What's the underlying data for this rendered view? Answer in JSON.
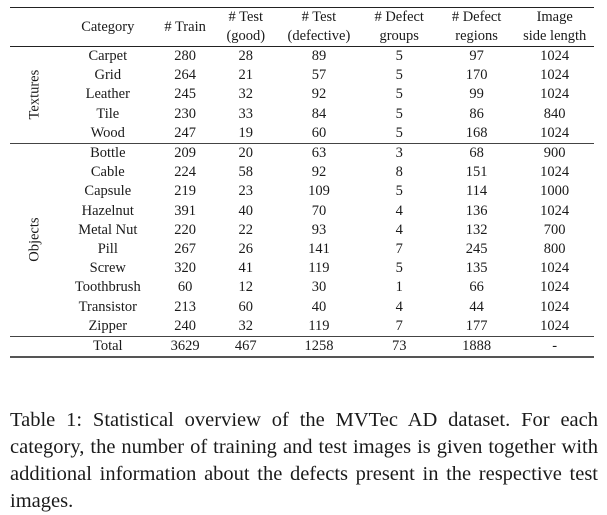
{
  "table": {
    "headers": [
      {
        "line1": "",
        "line2": ""
      },
      {
        "line1": "Category",
        "line2": ""
      },
      {
        "line1": "# Train",
        "line2": ""
      },
      {
        "line1": "# Test",
        "line2": "(good)"
      },
      {
        "line1": "# Test",
        "line2": "(defective)"
      },
      {
        "line1": "# Defect",
        "line2": "groups"
      },
      {
        "line1": "# Defect",
        "line2": "regions"
      },
      {
        "line1": "Image",
        "line2": "side length"
      }
    ],
    "groups": [
      {
        "label": "Textures",
        "rows": [
          [
            "Carpet",
            "280",
            "28",
            "89",
            "5",
            "97",
            "1024"
          ],
          [
            "Grid",
            "264",
            "21",
            "57",
            "5",
            "170",
            "1024"
          ],
          [
            "Leather",
            "245",
            "32",
            "92",
            "5",
            "99",
            "1024"
          ],
          [
            "Tile",
            "230",
            "33",
            "84",
            "5",
            "86",
            "840"
          ],
          [
            "Wood",
            "247",
            "19",
            "60",
            "5",
            "168",
            "1024"
          ]
        ]
      },
      {
        "label": "Objects",
        "rows": [
          [
            "Bottle",
            "209",
            "20",
            "63",
            "3",
            "68",
            "900"
          ],
          [
            "Cable",
            "224",
            "58",
            "92",
            "8",
            "151",
            "1024"
          ],
          [
            "Capsule",
            "219",
            "23",
            "109",
            "5",
            "114",
            "1000"
          ],
          [
            "Hazelnut",
            "391",
            "40",
            "70",
            "4",
            "136",
            "1024"
          ],
          [
            "Metal Nut",
            "220",
            "22",
            "93",
            "4",
            "132",
            "700"
          ],
          [
            "Pill",
            "267",
            "26",
            "141",
            "7",
            "245",
            "800"
          ],
          [
            "Screw",
            "320",
            "41",
            "119",
            "5",
            "135",
            "1024"
          ],
          [
            "Toothbrush",
            "60",
            "12",
            "30",
            "1",
            "66",
            "1024"
          ],
          [
            "Transistor",
            "213",
            "60",
            "40",
            "4",
            "44",
            "1024"
          ],
          [
            "Zipper",
            "240",
            "32",
            "119",
            "7",
            "177",
            "1024"
          ]
        ]
      }
    ],
    "total": [
      "Total",
      "3629",
      "467",
      "1258",
      "73",
      "1888",
      "-"
    ]
  },
  "caption": "Table 1: Statistical overview of the MVTec AD dataset. For each category, the number of training and test images is given together with additional information about the defects present in the respective test images."
}
